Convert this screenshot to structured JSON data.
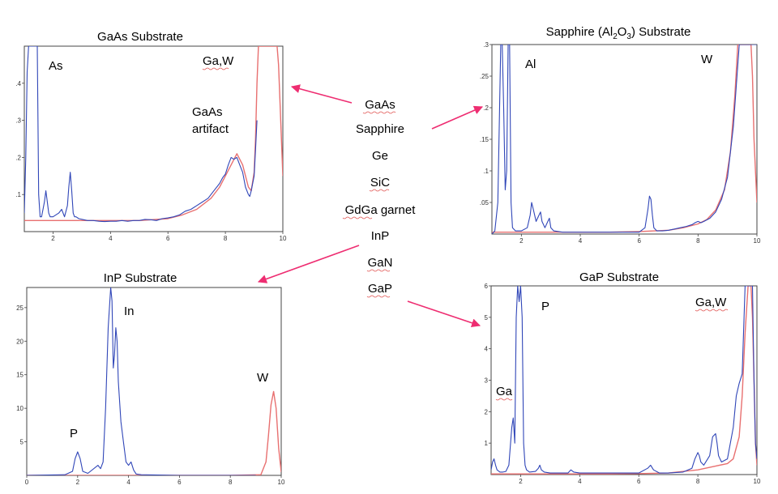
{
  "substrate_list": {
    "items": [
      "GaAs",
      "Sapphire",
      "Ge",
      "SiC",
      "GdGa garnet",
      "InP",
      "GaN",
      "GaP"
    ],
    "spellcheck_marked": [
      true,
      false,
      false,
      true,
      true,
      false,
      true,
      true
    ]
  },
  "colors": {
    "measured": "#3046b8",
    "fit": "#e87070",
    "arrow": "#ee2d71",
    "frame": "#444444"
  },
  "chart_data": [
    {
      "type": "line",
      "title": "GaAs Substrate",
      "xlabel": "",
      "ylabel": "",
      "xlim": [
        1,
        10
      ],
      "ylim": [
        0,
        0.5
      ],
      "xticks": [
        2,
        4,
        6,
        8,
        10
      ],
      "yticks": [
        {
          "v": 0.1,
          "l": ".1"
        },
        {
          "v": 0.2,
          "l": ".2"
        },
        {
          "v": 0.3,
          "l": ".3"
        },
        {
          "v": 0.4,
          "l": ".4"
        }
      ],
      "annotations": [
        {
          "text": "As"
        },
        {
          "text": "Ga,W",
          "spellcheck": true
        },
        {
          "text": "GaAs",
          "spellcheck": false
        },
        {
          "text": "artifact",
          "spellcheck": false
        }
      ],
      "series": [
        {
          "color": "measured",
          "x": [
            1,
            1.05,
            1.1,
            1.15,
            1.2,
            1.25,
            1.3,
            1.35,
            1.4,
            1.45,
            1.5,
            1.55,
            1.6,
            1.7,
            1.75,
            1.8,
            1.85,
            1.9,
            2.0,
            2.2,
            2.3,
            2.4,
            2.5,
            2.55,
            2.6,
            2.65,
            2.7,
            2.75,
            2.8,
            2.9,
            3.2,
            3.4,
            3.6,
            3.8,
            4.0,
            4.2,
            4.4,
            4.6,
            4.8,
            5.0,
            5.2,
            5.4,
            5.6,
            5.8,
            6.0,
            6.2,
            6.4,
            6.6,
            6.8,
            7.0,
            7.2,
            7.4,
            7.6,
            7.8,
            7.9,
            8.0,
            8.1,
            8.2,
            8.3,
            8.4,
            8.5,
            8.6,
            8.7,
            8.8,
            8.85,
            8.9,
            9.0,
            9.05,
            9.1
          ],
          "y": [
            0.05,
            0.2,
            0.43,
            0.5,
            0.5,
            0.5,
            0.5,
            0.5,
            0.5,
            0.5,
            0.1,
            0.04,
            0.04,
            0.08,
            0.11,
            0.08,
            0.05,
            0.04,
            0.04,
            0.05,
            0.06,
            0.04,
            0.07,
            0.12,
            0.16,
            0.11,
            0.05,
            0.04,
            0.04,
            0.035,
            0.03,
            0.03,
            0.028,
            0.027,
            0.028,
            0.028,
            0.03,
            0.028,
            0.03,
            0.03,
            0.033,
            0.032,
            0.03,
            0.035,
            0.037,
            0.04,
            0.045,
            0.055,
            0.06,
            0.07,
            0.08,
            0.09,
            0.11,
            0.13,
            0.145,
            0.155,
            0.18,
            0.2,
            0.195,
            0.2,
            0.18,
            0.16,
            0.12,
            0.1,
            0.095,
            0.11,
            0.15,
            0.22,
            0.3
          ]
        },
        {
          "color": "fit",
          "x": [
            1,
            2,
            3,
            4,
            5,
            6,
            6.5,
            7,
            7.5,
            7.8,
            8.0,
            8.2,
            8.4,
            8.6,
            8.8,
            8.9,
            9.0,
            9.05,
            9.1,
            9.15,
            9.8,
            9.85,
            9.9,
            10
          ],
          "y": [
            0.03,
            0.03,
            0.03,
            0.03,
            0.03,
            0.035,
            0.045,
            0.06,
            0.09,
            0.12,
            0.15,
            0.18,
            0.21,
            0.18,
            0.12,
            0.11,
            0.16,
            0.25,
            0.4,
            0.5,
            0.5,
            0.45,
            0.35,
            0.15
          ]
        }
      ]
    },
    {
      "type": "line",
      "title": "Sapphire (Al2O3) Substrate",
      "xlabel": "",
      "ylabel": "",
      "xlim": [
        1,
        10
      ],
      "ylim": [
        0,
        0.3
      ],
      "xticks": [
        2,
        4,
        6,
        8,
        10
      ],
      "yticks": [
        {
          "v": 0.05,
          "l": ".05"
        },
        {
          "v": 0.1,
          "l": ".1"
        },
        {
          "v": 0.15,
          "l": ".15"
        },
        {
          "v": 0.2,
          "l": ".2"
        },
        {
          "v": 0.25,
          "l": ".25"
        },
        {
          "v": 0.3,
          "l": ".3"
        }
      ],
      "annotations": [
        {
          "text": "Al"
        },
        {
          "text": "W"
        }
      ],
      "series": [
        {
          "color": "measured",
          "x": [
            1.0,
            1.1,
            1.2,
            1.3,
            1.35,
            1.4,
            1.45,
            1.5,
            1.55,
            1.6,
            1.65,
            1.7,
            1.8,
            2.0,
            2.2,
            2.3,
            2.35,
            2.4,
            2.5,
            2.6,
            2.65,
            2.7,
            2.8,
            2.9,
            2.95,
            3.0,
            3.1,
            3.4,
            4.0,
            4.5,
            5.0,
            5.5,
            6.0,
            6.2,
            6.3,
            6.35,
            6.4,
            6.45,
            6.5,
            6.6,
            6.8,
            7.0,
            7.2,
            7.4,
            7.6,
            7.8,
            7.9,
            8.0,
            8.1,
            8.2,
            8.4,
            8.6,
            8.8,
            9.0,
            9.2,
            9.4,
            9.6,
            9.8,
            9.9,
            10.0
          ],
          "y": [
            0.0,
            0.005,
            0.05,
            0.3,
            0.3,
            0.2,
            0.07,
            0.1,
            0.3,
            0.3,
            0.05,
            0.01,
            0.005,
            0.005,
            0.01,
            0.03,
            0.05,
            0.04,
            0.02,
            0.03,
            0.035,
            0.02,
            0.01,
            0.02,
            0.025,
            0.01,
            0.005,
            0.003,
            0.003,
            0.003,
            0.003,
            0.003,
            0.003,
            0.01,
            0.04,
            0.06,
            0.055,
            0.03,
            0.01,
            0.005,
            0.005,
            0.006,
            0.008,
            0.01,
            0.012,
            0.015,
            0.018,
            0.02,
            0.018,
            0.02,
            0.025,
            0.035,
            0.055,
            0.09,
            0.17,
            0.3,
            0.3,
            0.3,
            0.3,
            0.3
          ]
        },
        {
          "color": "fit",
          "x": [
            1,
            2,
            3,
            4,
            5,
            6,
            7,
            7.5,
            8,
            8.3,
            8.6,
            8.9,
            9.1,
            9.25,
            9.35,
            9.4,
            9.8,
            9.85,
            9.9,
            10
          ],
          "y": [
            0.003,
            0.003,
            0.003,
            0.003,
            0.003,
            0.004,
            0.006,
            0.01,
            0.016,
            0.023,
            0.038,
            0.07,
            0.13,
            0.22,
            0.3,
            0.3,
            0.3,
            0.25,
            0.15,
            0.05
          ]
        }
      ]
    },
    {
      "type": "line",
      "title": "InP Substrate",
      "xlabel": "",
      "ylabel": "",
      "xlim": [
        0,
        10
      ],
      "ylim": [
        0,
        28
      ],
      "xticks": [
        0,
        2,
        4,
        6,
        8,
        10
      ],
      "yticks": [
        {
          "v": 5,
          "l": "5"
        },
        {
          "v": 10,
          "l": "10"
        },
        {
          "v": 15,
          "l": "15"
        },
        {
          "v": 20,
          "l": "20"
        },
        {
          "v": 25,
          "l": "25"
        }
      ],
      "annotations": [
        {
          "text": "P"
        },
        {
          "text": "In"
        },
        {
          "text": "W"
        }
      ],
      "series": [
        {
          "color": "measured",
          "x": [
            0,
            1.5,
            1.8,
            1.9,
            2.0,
            2.1,
            2.2,
            2.4,
            2.8,
            2.9,
            3.0,
            3.1,
            3.2,
            3.3,
            3.35,
            3.4,
            3.45,
            3.5,
            3.55,
            3.6,
            3.7,
            3.8,
            3.9,
            4.0,
            4.1,
            4.2,
            4.3,
            4.5,
            6,
            9
          ],
          "y": [
            0,
            0.1,
            0.6,
            2.5,
            3.5,
            2.5,
            0.6,
            0.3,
            1.5,
            1.0,
            2.0,
            10,
            22,
            28,
            26,
            16,
            18,
            22,
            20,
            14,
            8,
            5,
            2,
            1.5,
            2,
            0.8,
            0.2,
            0.1,
            0,
            0
          ]
        },
        {
          "color": "fit",
          "x": [
            0,
            8,
            9.2,
            9.4,
            9.5,
            9.6,
            9.7,
            9.8,
            9.9,
            10
          ],
          "y": [
            0,
            0,
            0.1,
            2.0,
            6.0,
            10.5,
            12.5,
            10.0,
            4.0,
            0.5
          ]
        }
      ]
    },
    {
      "type": "line",
      "title": "GaP Substrate",
      "xlabel": "",
      "ylabel": "",
      "xlim": [
        1,
        10
      ],
      "ylim": [
        0,
        6
      ],
      "xticks": [
        2,
        4,
        6,
        8,
        10
      ],
      "yticks": [
        {
          "v": 1,
          "l": "1"
        },
        {
          "v": 2,
          "l": "2"
        },
        {
          "v": 3,
          "l": "3"
        },
        {
          "v": 4,
          "l": "4"
        },
        {
          "v": 5,
          "l": "5"
        },
        {
          "v": 6,
          "l": "6"
        }
      ],
      "annotations": [
        {
          "text": "P"
        },
        {
          "text": "Ga",
          "spellcheck": true
        },
        {
          "text": "Ga,W",
          "spellcheck": true
        }
      ],
      "series": [
        {
          "color": "measured",
          "x": [
            1.0,
            1.05,
            1.1,
            1.15,
            1.2,
            1.3,
            1.4,
            1.5,
            1.6,
            1.7,
            1.75,
            1.8,
            1.85,
            1.9,
            1.95,
            2.0,
            2.05,
            2.1,
            2.15,
            2.2,
            2.3,
            2.5,
            2.6,
            2.65,
            2.7,
            2.8,
            3.0,
            3.6,
            3.7,
            3.8,
            4.0,
            5.0,
            6.0,
            6.3,
            6.4,
            6.5,
            6.7,
            7.0,
            7.5,
            7.8,
            7.9,
            8.0,
            8.05,
            8.1,
            8.2,
            8.4,
            8.5,
            8.6,
            8.65,
            8.7,
            8.8,
            9.0,
            9.2,
            9.3,
            9.4,
            9.5,
            9.6,
            9.7,
            9.8,
            9.85,
            9.9,
            9.95,
            10.0
          ],
          "y": [
            0.15,
            0.4,
            0.5,
            0.3,
            0.15,
            0.08,
            0.08,
            0.1,
            0.3,
            1.5,
            1.8,
            1.0,
            5.0,
            6.0,
            5.5,
            6.0,
            5.0,
            1.0,
            0.3,
            0.15,
            0.08,
            0.1,
            0.2,
            0.3,
            0.15,
            0.08,
            0.05,
            0.05,
            0.15,
            0.08,
            0.05,
            0.05,
            0.05,
            0.2,
            0.3,
            0.15,
            0.05,
            0.05,
            0.08,
            0.2,
            0.5,
            0.7,
            0.6,
            0.4,
            0.3,
            0.6,
            1.2,
            1.3,
            1.0,
            0.6,
            0.4,
            0.5,
            1.5,
            2.5,
            2.9,
            3.2,
            6.0,
            6.0,
            6.0,
            6.0,
            3.0,
            1.0,
            0.5
          ]
        },
        {
          "color": "fit",
          "x": [
            1,
            2,
            3,
            4,
            5,
            6,
            7,
            8,
            8.5,
            9.0,
            9.2,
            9.4,
            9.5,
            9.6,
            9.7,
            9.8,
            9.85,
            9.9,
            9.95,
            10
          ],
          "y": [
            0.02,
            0.02,
            0.02,
            0.02,
            0.02,
            0.03,
            0.05,
            0.15,
            0.25,
            0.35,
            0.5,
            1.2,
            2.5,
            4.5,
            6.0,
            6.0,
            5.0,
            3.0,
            1.0,
            0.3
          ]
        }
      ]
    }
  ]
}
